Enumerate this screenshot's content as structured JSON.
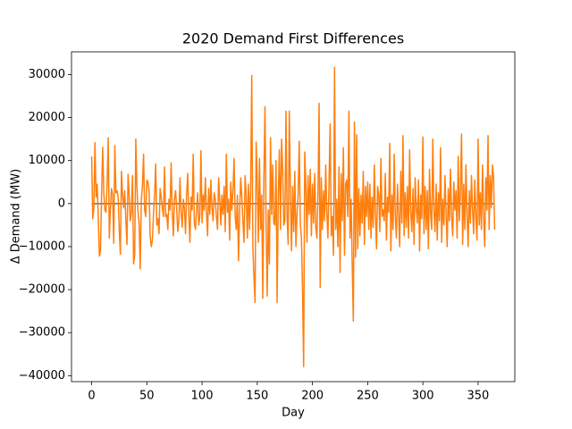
{
  "chart_data": {
    "type": "line",
    "title": "2020 Demand First Differences",
    "x_label": "Day",
    "y_label": "Δ Demand (MW)",
    "x": [
      0,
      1,
      2,
      3,
      4,
      5,
      6,
      7,
      8,
      9,
      10,
      11,
      12,
      13,
      14,
      15,
      16,
      17,
      18,
      19,
      20,
      21,
      22,
      23,
      24,
      25,
      26,
      27,
      28,
      29,
      30,
      31,
      32,
      33,
      34,
      35,
      36,
      37,
      38,
      39,
      40,
      41,
      42,
      43,
      44,
      45,
      46,
      47,
      48,
      49,
      50,
      51,
      52,
      53,
      54,
      55,
      56,
      57,
      58,
      59,
      60,
      61,
      62,
      63,
      64,
      65,
      66,
      67,
      68,
      69,
      70,
      71,
      72,
      73,
      74,
      75,
      76,
      77,
      78,
      79,
      80,
      81,
      82,
      83,
      84,
      85,
      86,
      87,
      88,
      89,
      90,
      91,
      92,
      93,
      94,
      95,
      96,
      97,
      98,
      99,
      100,
      101,
      102,
      103,
      104,
      105,
      106,
      107,
      108,
      109,
      110,
      111,
      112,
      113,
      114,
      115,
      116,
      117,
      118,
      119,
      120,
      121,
      122,
      123,
      124,
      125,
      126,
      127,
      128,
      129,
      130,
      131,
      132,
      133,
      134,
      135,
      136,
      137,
      138,
      139,
      140,
      141,
      142,
      143,
      144,
      145,
      146,
      147,
      148,
      149,
      150,
      151,
      152,
      153,
      154,
      155,
      156,
      157,
      158,
      159,
      160,
      161,
      162,
      163,
      164,
      165,
      166,
      167,
      168,
      169,
      170,
      171,
      172,
      173,
      174,
      175,
      176,
      177,
      178,
      179,
      180,
      181,
      182,
      183,
      184,
      185,
      186,
      187,
      188,
      189,
      190,
      191,
      192,
      193,
      194,
      195,
      196,
      197,
      198,
      199,
      200,
      201,
      202,
      203,
      204,
      205,
      206,
      207,
      208,
      209,
      210,
      211,
      212,
      213,
      214,
      215,
      216,
      217,
      218,
      219,
      220,
      221,
      222,
      223,
      224,
      225,
      226,
      227,
      228,
      229,
      230,
      231,
      232,
      233,
      234,
      235,
      236,
      237,
      238,
      239,
      240,
      241,
      242,
      243,
      244,
      245,
      246,
      247,
      248,
      249,
      250,
      251,
      252,
      253,
      254,
      255,
      256,
      257,
      258,
      259,
      260,
      261,
      262,
      263,
      264,
      265,
      266,
      267,
      268,
      269,
      270,
      271,
      272,
      273,
      274,
      275,
      276,
      277,
      278,
      279,
      280,
      281,
      282,
      283,
      284,
      285,
      286,
      287,
      288,
      289,
      290,
      291,
      292,
      293,
      294,
      295,
      296,
      297,
      298,
      299,
      300,
      301,
      302,
      303,
      304,
      305,
      306,
      307,
      308,
      309,
      310,
      311,
      312,
      313,
      314,
      315,
      316,
      317,
      318,
      319,
      320,
      321,
      322,
      323,
      324,
      325,
      326,
      327,
      328,
      329,
      330,
      331,
      332,
      333,
      334,
      335,
      336,
      337,
      338,
      339,
      340,
      341,
      342,
      343,
      344,
      345,
      346,
      347,
      348,
      349,
      350,
      351,
      352,
      353,
      354,
      355,
      356,
      357,
      358,
      359,
      360,
      361,
      362,
      363,
      364,
      365
    ],
    "series": [
      {
        "color": "#56697d",
        "x": [
          0,
          365
        ],
        "values": [
          0,
          0
        ]
      },
      {
        "color": "#ff7f0e",
        "values": [
          11000,
          -3500,
          -1000,
          14200,
          1500,
          4500,
          -3000,
          -12200,
          -11000,
          2000,
          13100,
          2500,
          -1500,
          -2000,
          4500,
          15300,
          -8000,
          -1000,
          3500,
          2000,
          -9200,
          13500,
          2500,
          3000,
          1500,
          -6000,
          -11800,
          7500,
          2000,
          -1000,
          3000,
          -4000,
          -9500,
          6800,
          2000,
          -4000,
          -2000,
          6500,
          -14000,
          -12000,
          15000,
          4000,
          -2000,
          -4500,
          -15200,
          1000,
          4000,
          11500,
          -1500,
          -3000,
          5500,
          5000,
          3000,
          -7500,
          -10000,
          -8500,
          -2500,
          2000,
          9200,
          -5000,
          -3500,
          -7000,
          3500,
          1500,
          -1000,
          -3000,
          8500,
          -3000,
          -2500,
          -6000,
          1000,
          -1500,
          9500,
          -2000,
          -7500,
          1000,
          3000,
          -1000,
          -6500,
          -4000,
          6000,
          -2000,
          -5500,
          1000,
          -1000,
          -7000,
          2000,
          7000,
          -2500,
          -9000,
          1500,
          -1500,
          11500,
          -4500,
          -6000,
          -1500,
          2500,
          -5000,
          -3000,
          12300,
          -4500,
          2000,
          -1500,
          6000,
          -2000,
          -7500,
          3500,
          -2500,
          5500,
          -1000,
          -4000,
          2500,
          1000,
          -3000,
          -6000,
          6000,
          1000,
          -5000,
          2000,
          -2500,
          4000,
          -6500,
          11500,
          -2000,
          1000,
          -8500,
          5000,
          -1500,
          3000,
          10500,
          -3000,
          -6000,
          2000,
          -13300,
          -2000,
          6000,
          1500,
          -4000,
          -9000,
          6500,
          2000,
          -8000,
          4500,
          -6000,
          3000,
          29800,
          -10000,
          -17000,
          -23000,
          14300,
          5000,
          -9000,
          10500,
          -6000,
          2000,
          -22000,
          6000,
          22500,
          -4500,
          -21500,
          -1500,
          -14000,
          15300,
          -2500,
          9000,
          -4500,
          -5000,
          10000,
          -23000,
          1500,
          12500,
          -6000,
          15000,
          8000,
          -5000,
          -4000,
          21500,
          -3000,
          -9500,
          21500,
          2500,
          -11000,
          4000,
          -6500,
          7500,
          -10000,
          -2500,
          2000,
          14500,
          -4500,
          -8000,
          -20000,
          -37900,
          12000,
          4500,
          -9000,
          6500,
          -2500,
          8000,
          -7500,
          4500,
          -4500,
          7000,
          -5500,
          -8000,
          2500,
          23300,
          -19500,
          6000,
          -6000,
          3000,
          -4000,
          9000,
          -2000,
          -8000,
          5000,
          18500,
          -7500,
          -3000,
          -12000,
          31700,
          -6000,
          1000,
          -10000,
          8500,
          -16000,
          7000,
          -4000,
          13000,
          -12000,
          4500,
          5500,
          -3000,
          21500,
          -8000,
          1000,
          -14000,
          -27300,
          19000,
          -12500,
          16000,
          -10500,
          3500,
          -7500,
          2000,
          -4500,
          7500,
          -9500,
          4000,
          -3000,
          5000,
          -6000,
          4500,
          -8000,
          1500,
          -5500,
          9000,
          -2500,
          -10500,
          4000,
          2000,
          -6500,
          10500,
          -3000,
          -1500,
          -4000,
          7000,
          -8500,
          1500,
          -2000,
          14000,
          -11000,
          2000,
          -6000,
          11500,
          -3000,
          -8000,
          4500,
          -2500,
          -10000,
          7500,
          -4500,
          15800,
          -7500,
          2500,
          -5500,
          4000,
          -8000,
          12500,
          -2000,
          -6500,
          3500,
          -9500,
          6000,
          -1000,
          -4500,
          5500,
          -11000,
          2000,
          -3500,
          15500,
          -7000,
          4000,
          -6000,
          3000,
          -10500,
          8000,
          -2500,
          -6000,
          15000,
          -1500,
          -6500,
          4500,
          -8500,
          2500,
          -4000,
          13000,
          -9000,
          1000,
          -5000,
          6500,
          -2000,
          -10000,
          3500,
          -4000,
          8000,
          -3000,
          -7500,
          5000,
          -1500,
          3000,
          -8000,
          11000,
          -4000,
          2500,
          16200,
          -9500,
          4500,
          -6000,
          9000,
          -2500,
          -10000,
          3000,
          -4500,
          6500,
          -1500,
          -7000,
          5500,
          -3000,
          -8500,
          15000,
          -5000,
          2500,
          -6000,
          9000,
          -3000,
          -10000,
          6000,
          -1500,
          15800,
          -6000,
          6500,
          -1000,
          9000,
          6200,
          -6000
        ]
      }
    ],
    "xlim": [
      -18.25,
      383.25
    ],
    "xticks": [
      0,
      50,
      100,
      150,
      200,
      250,
      300,
      350
    ],
    "ylim": [
      -41385,
      35285
    ],
    "yticks": [
      {
        "value": -40000,
        "label": "−40000"
      },
      {
        "value": -30000,
        "label": "−30000"
      },
      {
        "value": -20000,
        "label": "−20000"
      },
      {
        "value": -10000,
        "label": "−10000"
      },
      0,
      10000,
      20000,
      30000
    ],
    "grid": false
  }
}
